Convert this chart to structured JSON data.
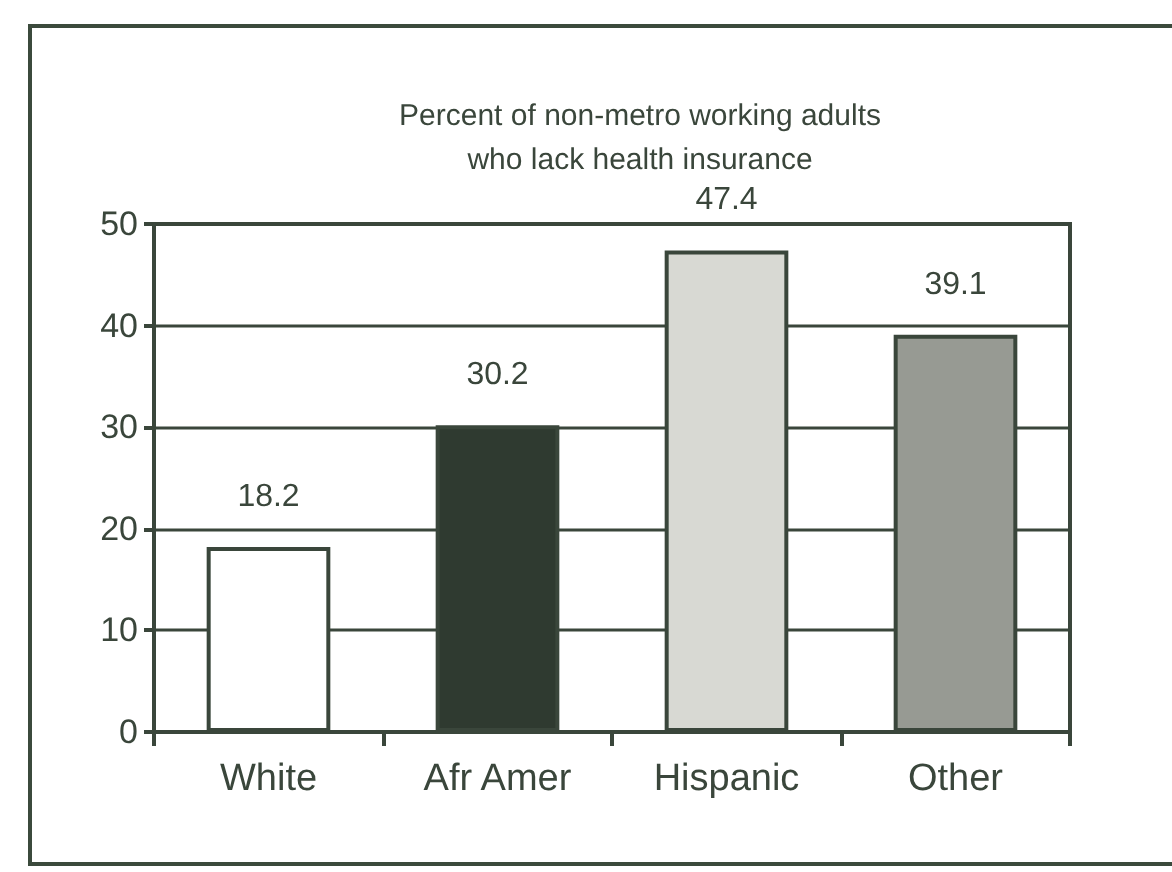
{
  "chart_data": {
    "type": "bar",
    "title": "Percent of non-metro working adults\nwho lack health insurance",
    "categories": [
      "White",
      "Afr Amer",
      "Hispanic",
      "Other"
    ],
    "values": [
      18.2,
      30.2,
      47.4,
      39.1
    ],
    "colors": [
      "#ffffff",
      "#2f3a30",
      "#d8d9d3",
      "#979a93"
    ],
    "ylim": [
      0,
      50
    ],
    "yticks": [
      0,
      10,
      20,
      30,
      40,
      50
    ],
    "grid": "y",
    "data_labels": true
  }
}
